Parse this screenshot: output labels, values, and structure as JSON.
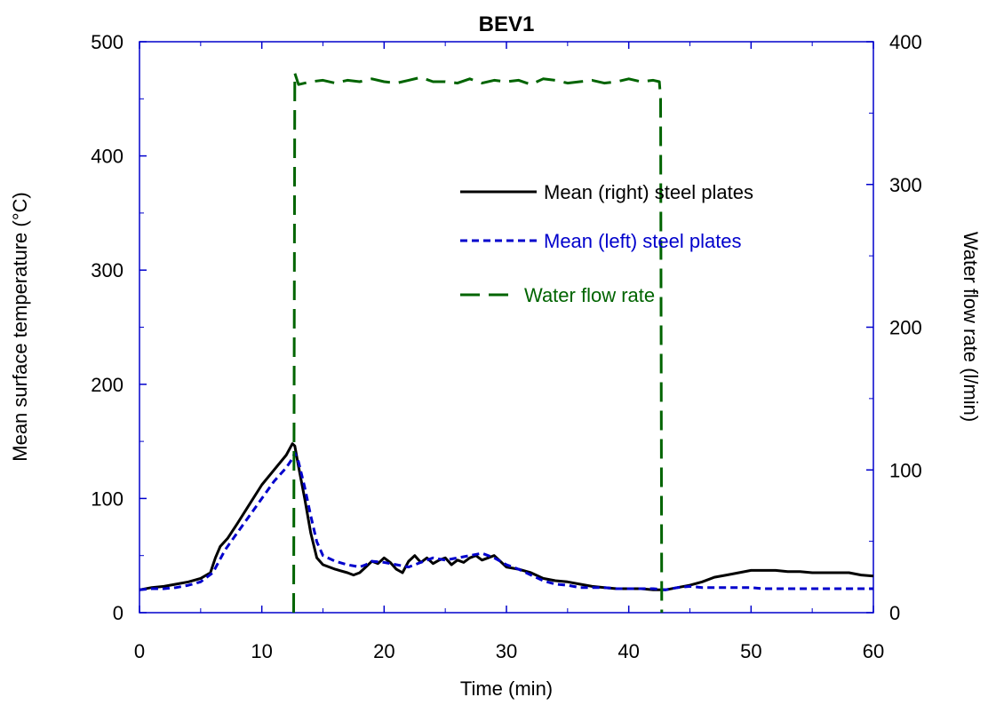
{
  "chart_data": {
    "type": "line",
    "title": "BEV1",
    "xlabel": "Time (min)",
    "ylabel_left": "Mean surface temperature (°C)",
    "ylabel_right": "Water flow rate (l/min)",
    "xlim": [
      0,
      60
    ],
    "ylim_left": [
      0,
      500
    ],
    "ylim_right": [
      0,
      400
    ],
    "x_ticks": [
      "0",
      "10",
      "20",
      "30",
      "40",
      "50",
      "60"
    ],
    "y_left_ticks": [
      "0",
      "100",
      "200",
      "300",
      "400",
      "500"
    ],
    "y_right_ticks": [
      "0",
      "100",
      "200",
      "300",
      "400"
    ],
    "grid": false,
    "legend_position": "upper-right inside",
    "axis_color": "#0000cc",
    "series": [
      {
        "name": "Mean (right) steel plates",
        "axis": "left",
        "color": "#000000",
        "style": "solid",
        "x": [
          0,
          1,
          2,
          3,
          4,
          5,
          5.8,
          6.2,
          6.6,
          7.2,
          8,
          9,
          10,
          11,
          12,
          12.5,
          12.7,
          13,
          13.5,
          14,
          14.5,
          15,
          16,
          17,
          17.5,
          18,
          18.5,
          19,
          19.5,
          20,
          20.5,
          21,
          21.5,
          22,
          22.5,
          23,
          23.5,
          24,
          24.5,
          25,
          25.5,
          26,
          26.5,
          27,
          27.5,
          28,
          28.5,
          29,
          30,
          31,
          32,
          33,
          34,
          35,
          36,
          37,
          38,
          39,
          40,
          41,
          42,
          43,
          44,
          45,
          46,
          47,
          48,
          49,
          50,
          51,
          52,
          53,
          54,
          55,
          56,
          57,
          58,
          59,
          60
        ],
        "values": [
          20,
          22,
          23,
          25,
          27,
          30,
          35,
          48,
          58,
          65,
          78,
          95,
          112,
          125,
          138,
          148,
          146,
          128,
          100,
          70,
          48,
          42,
          38,
          35,
          33,
          35,
          40,
          45,
          43,
          48,
          44,
          38,
          35,
          45,
          50,
          44,
          48,
          43,
          46,
          48,
          42,
          46,
          44,
          48,
          50,
          46,
          48,
          50,
          40,
          38,
          35,
          30,
          28,
          27,
          25,
          23,
          22,
          21,
          21,
          21,
          20,
          20,
          22,
          24,
          27,
          31,
          33,
          35,
          37,
          37,
          37,
          36,
          36,
          35,
          35,
          35,
          35,
          33,
          32
        ]
      },
      {
        "name": "Mean (left) steel plates",
        "axis": "left",
        "color": "#0000cc",
        "style": "dotted",
        "x": [
          0,
          1,
          2,
          3,
          4,
          5,
          6,
          6.5,
          7,
          8,
          9,
          10,
          11,
          12,
          12.5,
          12.7,
          13,
          13.5,
          14,
          14.5,
          15,
          16,
          17,
          18,
          18.5,
          19,
          20,
          21,
          22,
          23,
          24,
          25,
          26,
          27,
          28,
          29,
          30,
          31,
          32,
          33,
          34,
          35,
          36,
          37,
          38,
          39,
          40,
          41,
          42,
          43,
          44,
          45,
          46,
          47,
          48,
          49,
          50,
          51,
          52,
          53,
          54,
          55,
          56,
          57,
          58,
          59,
          60
        ],
        "values": [
          20,
          21,
          21,
          22,
          24,
          27,
          35,
          45,
          55,
          70,
          85,
          100,
          115,
          127,
          135,
          140,
          132,
          110,
          85,
          62,
          50,
          45,
          42,
          40,
          42,
          45,
          44,
          42,
          40,
          44,
          48,
          46,
          48,
          50,
          52,
          48,
          42,
          38,
          33,
          28,
          25,
          24,
          22,
          22,
          22,
          21,
          21,
          21,
          21,
          20,
          22,
          23,
          22,
          22,
          22,
          22,
          22,
          21,
          21,
          21,
          21,
          21,
          21,
          21,
          21,
          21,
          21
        ]
      },
      {
        "name": "Water flow rate",
        "axis": "right",
        "color": "#006400",
        "style": "dashed",
        "x": [
          12.6,
          12.7,
          13,
          14,
          15,
          16,
          17,
          18,
          19,
          20,
          21,
          22,
          23,
          24,
          25,
          26,
          27,
          28,
          29,
          30,
          31,
          32,
          33,
          34,
          35,
          36,
          37,
          38,
          39,
          40,
          41,
          42,
          42.5,
          42.6,
          42.7
        ],
        "values": [
          0,
          378,
          370,
          372,
          373,
          371,
          373,
          372,
          374,
          372,
          371,
          373,
          375,
          372,
          372,
          371,
          374,
          371,
          373,
          372,
          373,
          370,
          374,
          373,
          371,
          372,
          373,
          371,
          372,
          374,
          372,
          373,
          372,
          360,
          0
        ]
      }
    ]
  }
}
